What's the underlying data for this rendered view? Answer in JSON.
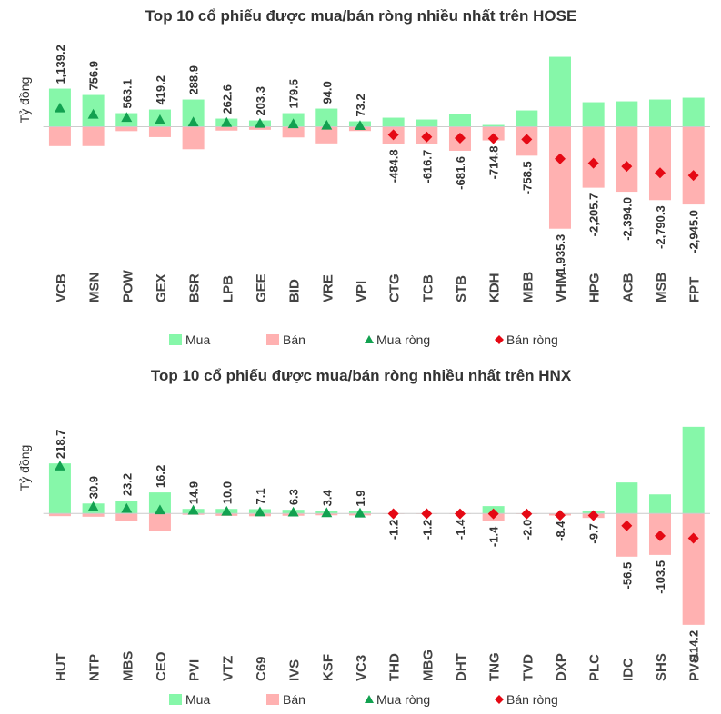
{
  "chart_data": [
    {
      "type": "bar",
      "title": "Top 10 cổ phiếu được mua/bán ròng nhiều nhất trên HOSE",
      "y_label": "Tỷ đồng",
      "categories": [
        "VCB",
        "MSN",
        "POW",
        "GEX",
        "BSR",
        "LPB",
        "GEE",
        "BID",
        "VRE",
        "VPI",
        "CTG",
        "TCB",
        "STB",
        "KDH",
        "MBB",
        "VHM",
        "HPG",
        "ACB",
        "MSB",
        "FPT"
      ],
      "ylim": [
        -6900,
        5200
      ],
      "series": [
        {
          "name": "Mua",
          "color": "#86f7a9",
          "values": [
            2310,
            1925,
            825,
            1045,
            1650,
            495,
            385,
            825,
            1100,
            330,
            550,
            440,
            770,
            110,
            990,
            4235,
            1485,
            1540,
            1650,
            1760
          ]
        },
        {
          "name": "Bán",
          "color": "#ffb1b1",
          "values": [
            -1170,
            -1168,
            -262,
            -626,
            -1361,
            -232,
            -182,
            -645,
            -1006,
            -257,
            -1035,
            -1057,
            -1452,
            -825,
            -1748,
            -6170,
            -3690,
            -3934,
            -4440,
            -4705
          ]
        },
        {
          "name": "Mua ròng",
          "color": "#12a150",
          "marker": "triangle",
          "values": [
            1139.2,
            756.9,
            563.1,
            419.2,
            288.9,
            262.6,
            203.3,
            179.5,
            94.0,
            73.2,
            null,
            null,
            null,
            null,
            null,
            null,
            null,
            null,
            null,
            null
          ],
          "value_labels": [
            "1,139.2",
            "756.9",
            "563.1",
            "419.2",
            "288.9",
            "262.6",
            "203.3",
            "179.5",
            "94.0",
            "73.2",
            null,
            null,
            null,
            null,
            null,
            null,
            null,
            null,
            null,
            null
          ]
        },
        {
          "name": "Bán ròng",
          "color": "#e50914",
          "marker": "diamond",
          "values": [
            null,
            null,
            null,
            null,
            null,
            null,
            null,
            null,
            null,
            null,
            -484.8,
            -616.7,
            -681.6,
            -714.8,
            -758.5,
            -1935.3,
            -2205.7,
            -2394.0,
            -2790.3,
            -2945.0
          ],
          "value_labels": [
            null,
            null,
            null,
            null,
            null,
            null,
            null,
            null,
            null,
            null,
            "-484.8",
            "-616.7",
            "-681.6",
            "-714.8",
            "-758.5",
            "-1,935.3",
            "-2,205.7",
            "-2,394.0",
            "-2,790.3",
            "-2,945.0"
          ]
        }
      ]
    },
    {
      "type": "bar",
      "title": "Top 10 cổ phiếu được mua/bán ròng nhiều nhất trên HNX",
      "y_label": "Tỷ đồng",
      "categories": [
        "HUT",
        "NTP",
        "MBS",
        "CEO",
        "PVI",
        "VTZ",
        "C69",
        "IVS",
        "KSF",
        "VC3",
        "THD",
        "MBG",
        "DHT",
        "TNG",
        "TVD",
        "DXP",
        "PLC",
        "IDC",
        "SHS",
        "PVS"
      ],
      "ylim": [
        -540,
        500
      ],
      "series": [
        {
          "name": "Mua",
          "color": "#86f7a9",
          "values": [
            231,
            46,
            59,
            97,
            21,
            21,
            20,
            17,
            12,
            11,
            1,
            1,
            0.5,
            34,
            0.5,
            1,
            11,
            143,
            88,
            400
          ]
        },
        {
          "name": "Bán",
          "color": "#ffb1b1",
          "values": [
            -12.3,
            -15.1,
            -35.8,
            -80.8,
            -6.1,
            -11,
            -12.9,
            -10.7,
            -8.6,
            -9.1,
            -2.2,
            -2.2,
            -1.9,
            -35.4,
            -2.5,
            -9.4,
            -20.7,
            -199.5,
            -191.5,
            -514.2
          ]
        },
        {
          "name": "Mua ròng",
          "color": "#12a150",
          "marker": "triangle",
          "values": [
            218.7,
            30.9,
            23.2,
            16.2,
            14.9,
            10.0,
            7.1,
            6.3,
            3.4,
            1.9,
            null,
            null,
            null,
            null,
            null,
            null,
            null,
            null,
            null,
            null
          ],
          "value_labels": [
            "218.7",
            "30.9",
            "23.2",
            "16.2",
            "14.9",
            "10.0",
            "7.1",
            "6.3",
            "3.4",
            "1.9",
            null,
            null,
            null,
            null,
            null,
            null,
            null,
            null,
            null,
            null
          ]
        },
        {
          "name": "Bán ròng",
          "color": "#e50914",
          "marker": "diamond",
          "values": [
            null,
            null,
            null,
            null,
            null,
            null,
            null,
            null,
            null,
            null,
            -1.2,
            -1.2,
            -1.4,
            -1.4,
            -2.0,
            -8.4,
            -9.7,
            -56.5,
            -103.5,
            -114.2
          ],
          "value_labels": [
            null,
            null,
            null,
            null,
            null,
            null,
            null,
            null,
            null,
            null,
            "-1.2",
            "-1.2",
            "-1.4",
            "-1.4",
            "-2.0",
            "-8.4",
            "-9.7",
            "-56.5",
            "-103.5",
            "-114.2"
          ]
        }
      ]
    }
  ]
}
